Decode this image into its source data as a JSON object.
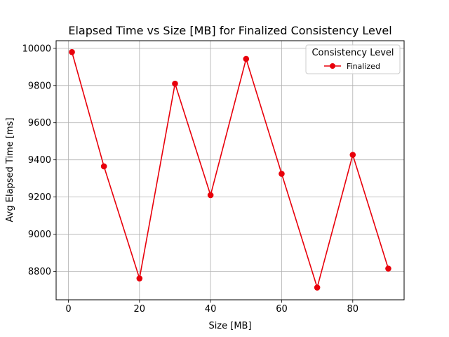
{
  "chart_data": {
    "type": "line",
    "title": "Elapsed Time vs Size [MB] for Finalized Consistency Level",
    "xlabel": "Size [MB]",
    "ylabel": "Avg Elapsed Time [ms]",
    "xlim": [
      -3.45,
      94.45
    ],
    "ylim": [
      8647,
      10041
    ],
    "xticks": [
      0,
      20,
      40,
      60,
      80
    ],
    "yticks": [
      8800,
      9000,
      9200,
      9400,
      9600,
      9800,
      10000
    ],
    "grid": true,
    "legend": {
      "title": "Consistency Level",
      "placement": "top-right"
    },
    "series": [
      {
        "name": "Finalized",
        "color": "#e8000b",
        "marker": "circle",
        "x": [
          1,
          10,
          20,
          30,
          40,
          50,
          60,
          70,
          80,
          90
        ],
        "y": [
          9980,
          9365,
          8762,
          9810,
          9210,
          9943,
          9325,
          8713,
          9427,
          8815
        ]
      }
    ]
  }
}
